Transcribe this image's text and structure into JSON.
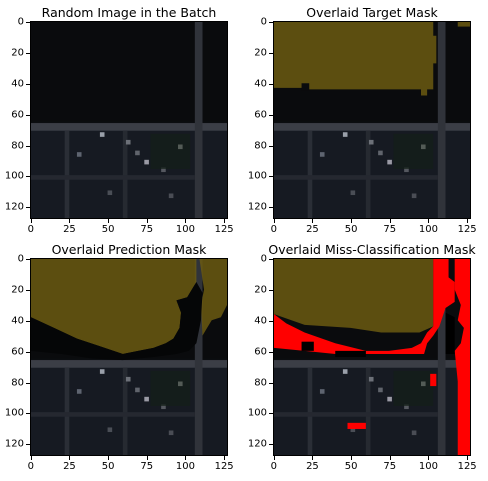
{
  "panels": [
    {
      "id": "p1",
      "title": "Random Image in the Batch"
    },
    {
      "id": "p2",
      "title": "Overlaid Target Mask"
    },
    {
      "id": "p3",
      "title": "Overlaid Prediction Mask"
    },
    {
      "id": "p4",
      "title": "Overlaid Miss-Classification Mask"
    }
  ],
  "axes": {
    "x_ticks": [
      "0",
      "25",
      "50",
      "75",
      "100",
      "125"
    ],
    "y_ticks": [
      "0",
      "20",
      "40",
      "60",
      "80",
      "100",
      "120"
    ],
    "xlim": [
      0,
      128
    ],
    "ylim": [
      0,
      128
    ]
  },
  "colors": {
    "mask_overlay": "#6b5a12",
    "missclass": "#ff0000",
    "background_dark": "#0d0f12",
    "road": "#3a3d44"
  }
}
